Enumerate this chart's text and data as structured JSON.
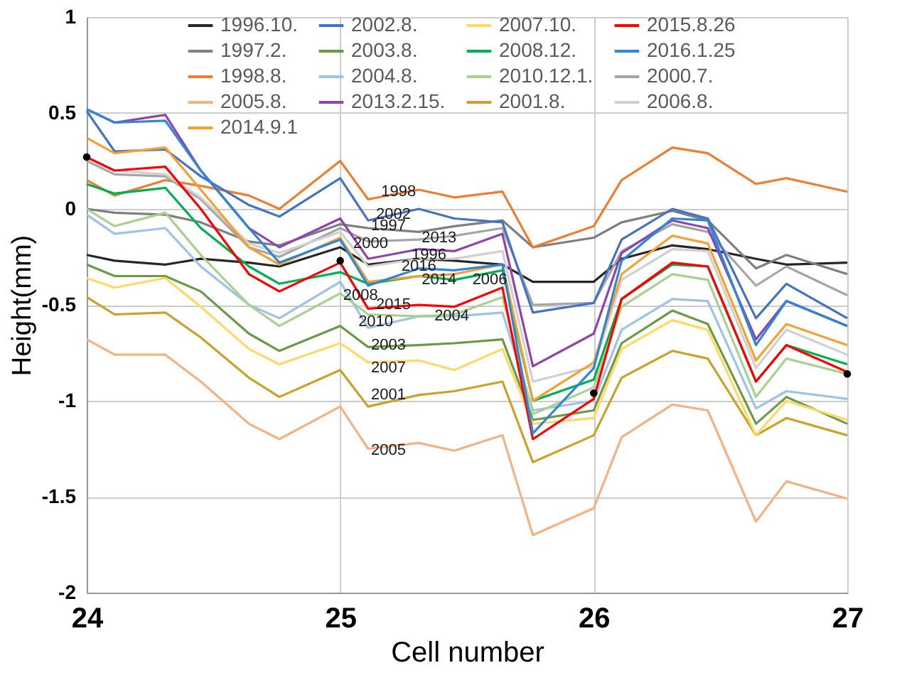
{
  "chart_data": {
    "type": "line",
    "xlabel": "Cell number",
    "ylabel": "Height(mm)",
    "x": [
      24,
      24.11,
      24.31,
      24.45,
      24.64,
      24.76,
      25,
      25.11,
      25.31,
      25.45,
      25.64,
      25.76,
      26,
      26.11,
      26.31,
      26.45,
      26.64,
      26.76,
      27
    ],
    "xlim": [
      24,
      27
    ],
    "xticks": [
      24,
      25,
      26,
      27
    ],
    "ylim": [
      -2,
      1
    ],
    "yticks": [
      -2,
      -1.5,
      -1,
      -0.5,
      0,
      0.5,
      1
    ],
    "grid": true,
    "legend": "top",
    "line_style": "solid",
    "series": [
      {
        "name": "1996.10.",
        "color": "#262626",
        "values": [
          -0.24,
          -0.27,
          -0.29,
          -0.26,
          -0.28,
          -0.3,
          -0.2,
          -0.29,
          -0.26,
          -0.27,
          -0.29,
          -0.38,
          -0.38,
          -0.26,
          -0.19,
          -0.21,
          -0.26,
          -0.29,
          -0.28
        ]
      },
      {
        "name": "1997.2.",
        "color": "#7f7f7f",
        "values": [
          0.0,
          -0.02,
          -0.03,
          -0.07,
          -0.17,
          -0.19,
          -0.08,
          -0.1,
          -0.12,
          -0.09,
          -0.06,
          -0.2,
          -0.15,
          -0.07,
          -0.01,
          -0.06,
          -0.31,
          -0.24,
          -0.34
        ]
      },
      {
        "name": "1998.8.",
        "color": "#ed7d31",
        "values": [
          0.15,
          0.07,
          0.15,
          0.12,
          0.07,
          0.0,
          0.25,
          0.05,
          0.1,
          0.06,
          0.09,
          -0.2,
          -0.09,
          0.15,
          0.32,
          0.29,
          0.13,
          0.16,
          0.09
        ]
      },
      {
        "name": "2000.7.",
        "color": "#a5a5a5",
        "values": [
          0.25,
          0.18,
          0.17,
          0.05,
          -0.2,
          -0.25,
          -0.1,
          -0.17,
          -0.16,
          -0.14,
          -0.1,
          -0.5,
          -0.49,
          -0.22,
          -0.08,
          -0.12,
          -0.4,
          -0.3,
          -0.45
        ]
      },
      {
        "name": "2001.8.",
        "color": "#c9a227",
        "values": [
          -0.46,
          -0.55,
          -0.54,
          -0.67,
          -0.88,
          -0.98,
          -0.84,
          -1.03,
          -0.97,
          -0.95,
          -0.9,
          -1.32,
          -1.18,
          -0.88,
          -0.74,
          -0.78,
          -1.18,
          -1.09,
          -1.18
        ]
      },
      {
        "name": "2002.8.",
        "color": "#4472c4",
        "values": [
          0.51,
          0.3,
          0.31,
          0.17,
          0.02,
          -0.04,
          0.16,
          -0.06,
          0.0,
          -0.05,
          -0.07,
          -0.54,
          -0.49,
          -0.16,
          0.0,
          -0.05,
          -0.57,
          -0.39,
          -0.57
        ]
      },
      {
        "name": "2003.8.",
        "color": "#6a9a45",
        "values": [
          -0.29,
          -0.35,
          -0.35,
          -0.43,
          -0.65,
          -0.74,
          -0.61,
          -0.72,
          -0.71,
          -0.7,
          -0.68,
          -1.1,
          -1.05,
          -0.7,
          -0.53,
          -0.6,
          -1.12,
          -0.98,
          -1.12
        ]
      },
      {
        "name": "2004.8.",
        "color": "#9dc3e6",
        "values": [
          -0.03,
          -0.13,
          -0.1,
          -0.3,
          -0.5,
          -0.57,
          -0.38,
          -0.62,
          -0.56,
          -0.56,
          -0.54,
          -1.05,
          -1.0,
          -0.63,
          -0.47,
          -0.48,
          -1.04,
          -0.95,
          -0.99
        ]
      },
      {
        "name": "2005.8.",
        "color": "#f4b183",
        "values": [
          -0.68,
          -0.76,
          -0.76,
          -0.9,
          -1.12,
          -1.2,
          -1.03,
          -1.25,
          -1.22,
          -1.26,
          -1.18,
          -1.7,
          -1.56,
          -1.19,
          -1.02,
          -1.05,
          -1.63,
          -1.42,
          -1.51
        ]
      },
      {
        "name": "2006.8.",
        "color": "#d0d0d0",
        "values": [
          0.26,
          0.2,
          0.18,
          0.06,
          -0.18,
          -0.23,
          -0.12,
          -0.3,
          -0.26,
          -0.26,
          -0.22,
          -0.9,
          -0.82,
          -0.37,
          -0.21,
          -0.22,
          -0.83,
          -0.63,
          -0.76
        ]
      },
      {
        "name": "2007.10.",
        "color": "#ffd966",
        "values": [
          -0.36,
          -0.41,
          -0.36,
          -0.51,
          -0.73,
          -0.81,
          -0.7,
          -0.8,
          -0.79,
          -0.84,
          -0.73,
          -1.12,
          -1.09,
          -0.73,
          -0.58,
          -0.63,
          -1.18,
          -1.0,
          -1.1
        ]
      },
      {
        "name": "2008.12.",
        "color": "#00b050",
        "values": [
          0.13,
          0.08,
          0.11,
          -0.1,
          -0.3,
          -0.39,
          -0.33,
          -0.39,
          -0.35,
          -0.37,
          -0.32,
          -1.0,
          -0.89,
          -0.47,
          -0.29,
          -0.3,
          -0.9,
          -0.71,
          -0.81
        ]
      },
      {
        "name": "2010.12.1.",
        "color": "#a9d18e",
        "values": [
          0.0,
          -0.09,
          -0.02,
          -0.24,
          -0.5,
          -0.61,
          -0.44,
          -0.55,
          -0.56,
          -0.55,
          -0.46,
          -1.07,
          -0.93,
          -0.51,
          -0.34,
          -0.37,
          -0.98,
          -0.78,
          -0.86
        ]
      },
      {
        "name": "2013.2.15.",
        "color": "#8e44ad",
        "values": [
          0.52,
          0.45,
          0.49,
          0.2,
          -0.1,
          -0.2,
          -0.05,
          -0.26,
          -0.21,
          -0.22,
          -0.13,
          -0.82,
          -0.65,
          -0.23,
          -0.06,
          -0.1,
          -0.68,
          -0.48,
          -0.61
        ]
      },
      {
        "name": "2014.9.1",
        "color": "#f5a033",
        "values": [
          0.37,
          0.29,
          0.32,
          0.1,
          -0.2,
          -0.29,
          -0.15,
          -0.38,
          -0.35,
          -0.34,
          -0.29,
          -1.0,
          -0.8,
          -0.34,
          -0.14,
          -0.18,
          -0.79,
          -0.6,
          -0.71
        ]
      },
      {
        "name": "2015.8.26",
        "color": "#ff0000",
        "values": [
          0.27,
          0.2,
          0.22,
          0.0,
          -0.34,
          -0.43,
          -0.28,
          -0.52,
          -0.5,
          -0.51,
          -0.41,
          -1.2,
          -0.99,
          -0.47,
          -0.28,
          -0.3,
          -0.9,
          -0.71,
          -0.85
        ]
      },
      {
        "name": "2016.1.25",
        "color": "#2e86d6",
        "values": [
          0.52,
          0.45,
          0.46,
          0.2,
          -0.1,
          -0.28,
          -0.16,
          -0.4,
          -0.31,
          -0.32,
          -0.29,
          -1.17,
          -0.83,
          -0.27,
          -0.05,
          -0.06,
          -0.71,
          -0.48,
          -0.61
        ]
      },
      {
        "type": "scatter",
        "marker": "circle",
        "color": "#000000",
        "x": [
          24,
          25,
          26,
          27
        ],
        "values": [
          0.27,
          -0.27,
          -0.96,
          -0.86
        ]
      }
    ],
    "annotations": [
      {
        "text": "1998",
        "x": 25.23,
        "y": 0.09
      },
      {
        "text": "2002",
        "x": 25.21,
        "y": -0.03
      },
      {
        "text": "1997",
        "x": 25.19,
        "y": -0.09
      },
      {
        "text": "2000",
        "x": 25.12,
        "y": -0.18
      },
      {
        "text": "2013",
        "x": 25.39,
        "y": -0.15
      },
      {
        "text": "1996",
        "x": 25.35,
        "y": -0.24
      },
      {
        "text": "2016",
        "x": 25.31,
        "y": -0.3
      },
      {
        "text": "2014",
        "x": 25.39,
        "y": -0.37
      },
      {
        "text": "2006",
        "x": 25.59,
        "y": -0.37
      },
      {
        "text": "2008",
        "x": 25.08,
        "y": -0.45
      },
      {
        "text": "2015",
        "x": 25.21,
        "y": -0.5
      },
      {
        "text": "2010",
        "x": 25.14,
        "y": -0.59
      },
      {
        "text": "2004",
        "x": 25.44,
        "y": -0.56
      },
      {
        "text": "2003",
        "x": 25.19,
        "y": -0.71
      },
      {
        "text": "2007",
        "x": 25.19,
        "y": -0.83
      },
      {
        "text": "2001",
        "x": 25.19,
        "y": -0.97
      },
      {
        "text": "2005",
        "x": 25.19,
        "y": -1.26
      }
    ]
  }
}
